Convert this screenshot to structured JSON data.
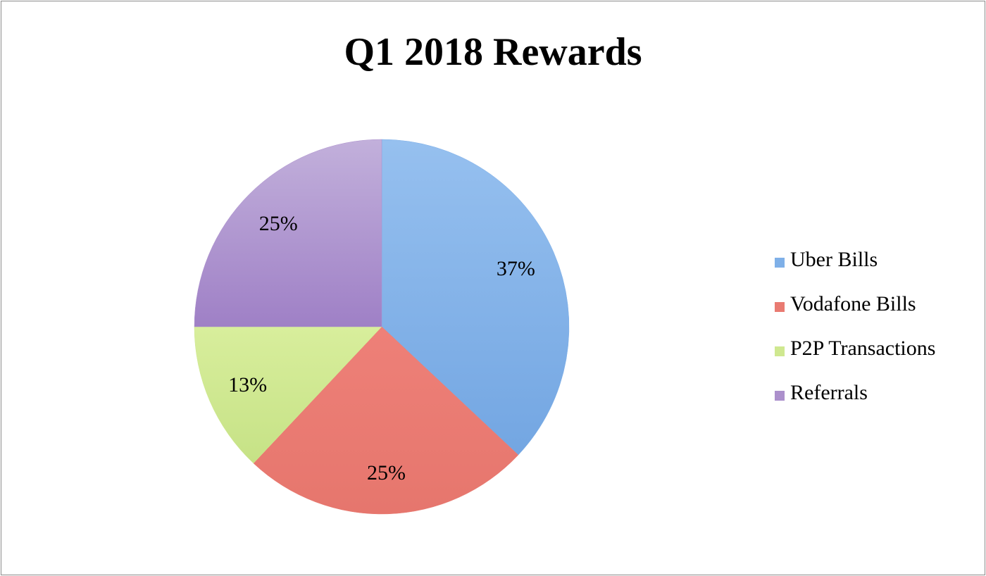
{
  "chart_data": {
    "type": "pie",
    "title": "Q1 2018 Rewards",
    "categories": [
      "Uber Bills",
      "Vodafone Bills",
      "P2P Transactions",
      "Referrals"
    ],
    "values": [
      37,
      25,
      13,
      25
    ],
    "labels": [
      "37%",
      "25%",
      "13%",
      "25%"
    ],
    "colors": [
      "#7fb0e8",
      "#e97b72",
      "#cfe890",
      "#ac90cc"
    ],
    "start_angle": "12 o'clock",
    "direction": "clockwise",
    "legend": "right"
  }
}
